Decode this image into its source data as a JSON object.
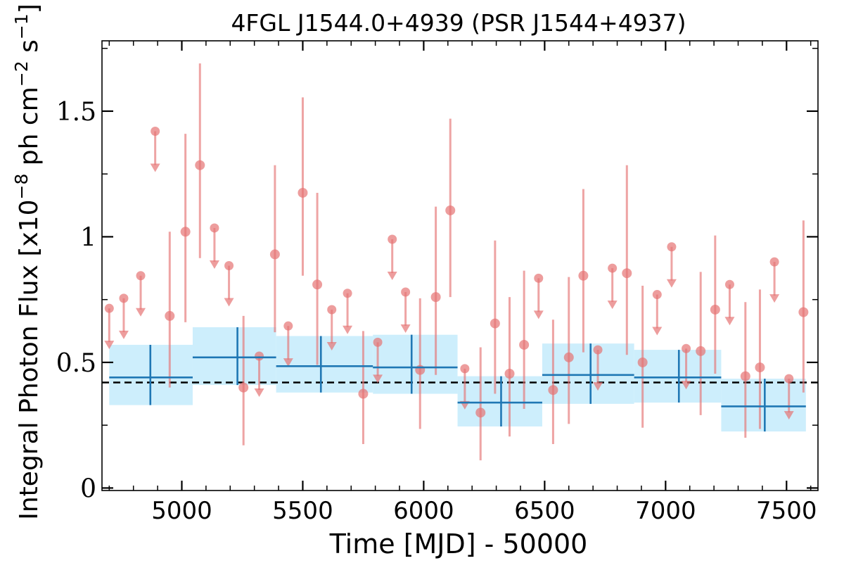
{
  "chart_data": {
    "type": "scatter",
    "title": "4FGL J1544.0+4939 (PSR J1544+4937)",
    "xlabel": "Time [MJD] - 50000",
    "ylabel": "Integral Photon Flux [x10",
    "ylabel_exp1": "−8",
    "ylabel_mid": " ph cm",
    "ylabel_exp2": "−2",
    "ylabel_mid2": " s",
    "ylabel_exp3": "−1",
    "ylabel_end": "]",
    "xlim": [
      4670,
      7630
    ],
    "ylim": [
      -0.01,
      1.78
    ],
    "xticks": [
      5000,
      5500,
      6000,
      6500,
      7000,
      7500
    ],
    "xtick_labels": [
      "5000",
      "5500",
      "6000",
      "6500",
      "7000",
      "7500"
    ],
    "yticks": [
      0,
      0.5,
      1,
      1.5
    ],
    "ytick_labels": [
      "0",
      "0.5",
      "1",
      "1.5"
    ],
    "reference_line": 0.42,
    "colors": {
      "points": "#e57373",
      "bins": "#1f77b4",
      "bin_fill": "#cdeefc",
      "reference": "#000000"
    },
    "series": [
      {
        "kind": "binned",
        "points": [
          {
            "x0": 4700,
            "x1": 5045,
            "xc": 4870,
            "y": 0.44,
            "lo": 0.33,
            "hi": 0.57
          },
          {
            "x0": 5045,
            "x1": 5390,
            "xc": 5230,
            "y": 0.52,
            "lo": 0.41,
            "hi": 0.64
          },
          {
            "x0": 5390,
            "x1": 5790,
            "xc": 5575,
            "y": 0.485,
            "lo": 0.38,
            "hi": 0.605
          },
          {
            "x0": 5790,
            "x1": 6140,
            "xc": 5950,
            "y": 0.48,
            "lo": 0.375,
            "hi": 0.61
          },
          {
            "x0": 6140,
            "x1": 6490,
            "xc": 6320,
            "y": 0.34,
            "lo": 0.245,
            "hi": 0.445
          },
          {
            "x0": 6490,
            "x1": 6870,
            "xc": 6690,
            "y": 0.45,
            "lo": 0.335,
            "hi": 0.575
          },
          {
            "x0": 6870,
            "x1": 7230,
            "xc": 7055,
            "y": 0.44,
            "lo": 0.34,
            "hi": 0.55
          },
          {
            "x0": 7230,
            "x1": 7580,
            "xc": 7410,
            "y": 0.325,
            "lo": 0.225,
            "hi": 0.435
          }
        ]
      },
      {
        "kind": "detections",
        "points": [
          {
            "x": 4950,
            "y": 0.685,
            "lo": 0.4,
            "hi": 1.02
          },
          {
            "x": 5015,
            "y": 1.02,
            "lo": 0.66,
            "hi": 1.41
          },
          {
            "x": 5075,
            "y": 1.285,
            "lo": 0.915,
            "hi": 1.69
          },
          {
            "x": 5255,
            "y": 0.4,
            "lo": 0.17,
            "hi": 0.685
          },
          {
            "x": 5385,
            "y": 0.93,
            "lo": 0.62,
            "hi": 1.285
          },
          {
            "x": 5500,
            "y": 1.175,
            "lo": 0.845,
            "hi": 1.555
          },
          {
            "x": 5560,
            "y": 0.81,
            "lo": 0.49,
            "hi": 1.175
          },
          {
            "x": 5750,
            "y": 0.375,
            "lo": 0.175,
            "hi": 0.625
          },
          {
            "x": 5985,
            "y": 0.47,
            "lo": 0.235,
            "hi": 0.755
          },
          {
            "x": 6050,
            "y": 0.76,
            "lo": 0.45,
            "hi": 1.12
          },
          {
            "x": 6110,
            "y": 1.105,
            "lo": 0.76,
            "hi": 1.47
          },
          {
            "x": 6235,
            "y": 0.3,
            "lo": 0.11,
            "hi": 0.56
          },
          {
            "x": 6295,
            "y": 0.655,
            "lo": 0.375,
            "hi": 0.985
          },
          {
            "x": 6355,
            "y": 0.455,
            "lo": 0.205,
            "hi": 0.76
          },
          {
            "x": 6415,
            "y": 0.57,
            "lo": 0.315,
            "hi": 0.865
          },
          {
            "x": 6535,
            "y": 0.39,
            "lo": 0.175,
            "hi": 0.67
          },
          {
            "x": 6600,
            "y": 0.52,
            "lo": 0.255,
            "hi": 0.84
          },
          {
            "x": 6660,
            "y": 0.845,
            "lo": 0.54,
            "hi": 1.19
          },
          {
            "x": 6840,
            "y": 0.855,
            "lo": 0.53,
            "hi": 1.285
          },
          {
            "x": 6905,
            "y": 0.5,
            "lo": 0.24,
            "hi": 0.805
          },
          {
            "x": 7145,
            "y": 0.545,
            "lo": 0.29,
            "hi": 0.86
          },
          {
            "x": 7205,
            "y": 0.71,
            "lo": 0.455,
            "hi": 1.005
          },
          {
            "x": 7330,
            "y": 0.445,
            "lo": 0.2,
            "hi": 0.74
          },
          {
            "x": 7390,
            "y": 0.48,
            "lo": 0.235,
            "hi": 0.79
          },
          {
            "x": 7570,
            "y": 0.7,
            "lo": 0.38,
            "hi": 1.065
          }
        ]
      },
      {
        "kind": "upper_limits",
        "points": [
          {
            "x": 4700,
            "y": 0.715
          },
          {
            "x": 4760,
            "y": 0.755
          },
          {
            "x": 4830,
            "y": 0.845
          },
          {
            "x": 4890,
            "y": 1.42
          },
          {
            "x": 5135,
            "y": 1.035
          },
          {
            "x": 5195,
            "y": 0.885
          },
          {
            "x": 5320,
            "y": 0.525
          },
          {
            "x": 5440,
            "y": 0.645
          },
          {
            "x": 5620,
            "y": 0.71
          },
          {
            "x": 5685,
            "y": 0.775
          },
          {
            "x": 5810,
            "y": 0.58
          },
          {
            "x": 5870,
            "y": 0.99
          },
          {
            "x": 5925,
            "y": 0.78
          },
          {
            "x": 6170,
            "y": 0.475
          },
          {
            "x": 6475,
            "y": 0.835
          },
          {
            "x": 6720,
            "y": 0.55
          },
          {
            "x": 6780,
            "y": 0.875
          },
          {
            "x": 6965,
            "y": 0.77
          },
          {
            "x": 7025,
            "y": 0.96
          },
          {
            "x": 7085,
            "y": 0.555
          },
          {
            "x": 7265,
            "y": 0.81
          },
          {
            "x": 7450,
            "y": 0.9
          },
          {
            "x": 7510,
            "y": 0.435
          }
        ]
      }
    ]
  }
}
